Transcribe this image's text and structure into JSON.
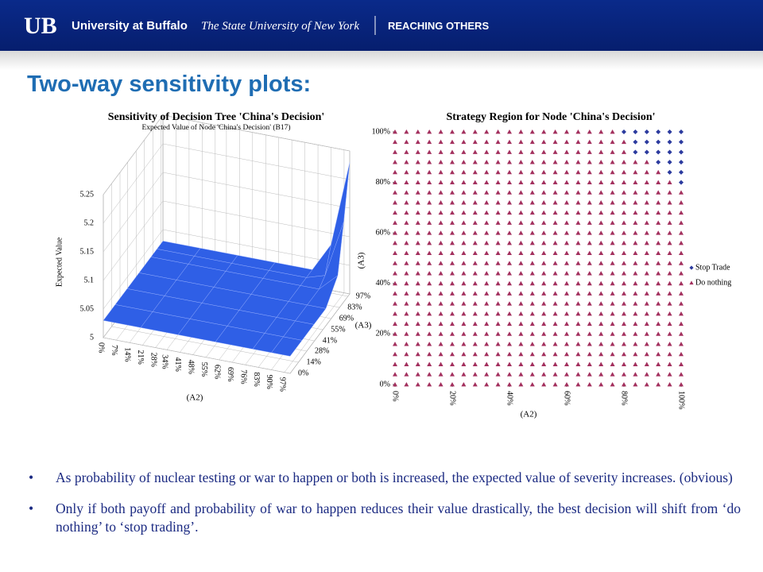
{
  "header": {
    "logo": "UB",
    "university": "University at Buffalo",
    "system": "The State University of New York",
    "tagline": "REACHING OTHERS"
  },
  "slide_title": "Two-way sensitivity plots:",
  "chart_data": [
    {
      "type": "surface",
      "title": "Sensitivity of Decision Tree 'China's Decision'",
      "subtitle": "Expected Value of Node 'China's Decision' (B17)",
      "x_label": "(A2)",
      "y_label": "(A3)",
      "z_label": "Expected Value",
      "color": "#2f5fe6",
      "x": [
        0,
        20,
        40,
        60,
        80,
        90,
        100
      ],
      "y": [
        0,
        20,
        40,
        60,
        80,
        90,
        100
      ],
      "z": [
        [
          5.03,
          5.03,
          5.03,
          5.03,
          5.03,
          5.03,
          5.03
        ],
        [
          5.03,
          5.03,
          5.03,
          5.03,
          5.03,
          5.03,
          5.03
        ],
        [
          5.03,
          5.03,
          5.03,
          5.03,
          5.03,
          5.03,
          5.03
        ],
        [
          5.03,
          5.03,
          5.03,
          5.03,
          5.03,
          5.03,
          5.03
        ],
        [
          5.03,
          5.03,
          5.03,
          5.03,
          5.03,
          5.03,
          5.06
        ],
        [
          5.03,
          5.03,
          5.03,
          5.03,
          5.03,
          5.04,
          5.14
        ],
        [
          5.03,
          5.03,
          5.03,
          5.03,
          5.03,
          5.08,
          5.23
        ]
      ],
      "xlim": [
        0,
        100
      ],
      "ylim": [
        0,
        100
      ],
      "zlim": [
        5,
        5.25
      ],
      "xticks": [
        {
          "value": 0,
          "label": "0%"
        },
        {
          "value": 7,
          "label": "7%"
        },
        {
          "value": 14,
          "label": "14%"
        },
        {
          "value": 21,
          "label": "21%"
        },
        {
          "value": 28,
          "label": "28%"
        },
        {
          "value": 34,
          "label": "34%"
        },
        {
          "value": 41,
          "label": "41%"
        },
        {
          "value": 48,
          "label": "48%"
        },
        {
          "value": 55,
          "label": "55%"
        },
        {
          "value": 62,
          "label": "62%"
        },
        {
          "value": 69,
          "label": "69%"
        },
        {
          "value": 76,
          "label": "76%"
        },
        {
          "value": 83,
          "label": "83%"
        },
        {
          "value": 90,
          "label": "90%"
        },
        {
          "value": 97,
          "label": "97%"
        }
      ],
      "yticks": [
        {
          "value": 0,
          "label": "0%"
        },
        {
          "value": 14,
          "label": "14%"
        },
        {
          "value": 28,
          "label": "28%"
        },
        {
          "value": 41,
          "label": "41%"
        },
        {
          "value": 55,
          "label": "55%"
        },
        {
          "value": 69,
          "label": "69%"
        },
        {
          "value": 83,
          "label": "83%"
        },
        {
          "value": 97,
          "label": "97%"
        }
      ],
      "zticks": [
        5,
        5.05,
        5.1,
        5.15,
        5.2,
        5.25
      ]
    },
    {
      "type": "region",
      "title": "Strategy Region for Node 'China's Decision'",
      "x_label": "(A2)",
      "y_label": "(A3)",
      "series": [
        {
          "name": "Stop Trade",
          "color": "#2b3a9e",
          "marker": "diamond"
        },
        {
          "name": "Do nothing",
          "color": "#a3305e",
          "marker": "triangle"
        }
      ],
      "x": [
        0,
        4,
        8,
        12,
        16,
        20,
        24,
        28,
        32,
        36,
        40,
        44,
        48,
        52,
        56,
        60,
        64,
        68,
        72,
        76,
        80,
        84,
        88,
        92,
        96,
        100
      ],
      "y": [
        0,
        4,
        8,
        12,
        16,
        20,
        24,
        28,
        32,
        36,
        40,
        44,
        48,
        52,
        56,
        60,
        64,
        68,
        72,
        76,
        80,
        84,
        88,
        92,
        96,
        100
      ],
      "cells": [
        [
          1,
          1,
          1,
          1,
          1,
          1,
          1,
          1,
          1,
          1,
          1,
          1,
          1,
          1,
          1,
          1,
          1,
          1,
          1,
          1,
          1,
          1,
          1,
          1,
          1,
          1
        ],
        [
          1,
          1,
          1,
          1,
          1,
          1,
          1,
          1,
          1,
          1,
          1,
          1,
          1,
          1,
          1,
          1,
          1,
          1,
          1,
          1,
          1,
          1,
          1,
          1,
          1,
          1
        ],
        [
          1,
          1,
          1,
          1,
          1,
          1,
          1,
          1,
          1,
          1,
          1,
          1,
          1,
          1,
          1,
          1,
          1,
          1,
          1,
          1,
          1,
          1,
          1,
          1,
          1,
          1
        ],
        [
          1,
          1,
          1,
          1,
          1,
          1,
          1,
          1,
          1,
          1,
          1,
          1,
          1,
          1,
          1,
          1,
          1,
          1,
          1,
          1,
          1,
          1,
          1,
          1,
          1,
          1
        ],
        [
          1,
          1,
          1,
          1,
          1,
          1,
          1,
          1,
          1,
          1,
          1,
          1,
          1,
          1,
          1,
          1,
          1,
          1,
          1,
          1,
          1,
          1,
          1,
          1,
          1,
          1
        ],
        [
          1,
          1,
          1,
          1,
          1,
          1,
          1,
          1,
          1,
          1,
          1,
          1,
          1,
          1,
          1,
          1,
          1,
          1,
          1,
          1,
          1,
          1,
          1,
          1,
          1,
          1
        ],
        [
          1,
          1,
          1,
          1,
          1,
          1,
          1,
          1,
          1,
          1,
          1,
          1,
          1,
          1,
          1,
          1,
          1,
          1,
          1,
          1,
          1,
          1,
          1,
          1,
          1,
          1
        ],
        [
          1,
          1,
          1,
          1,
          1,
          1,
          1,
          1,
          1,
          1,
          1,
          1,
          1,
          1,
          1,
          1,
          1,
          1,
          1,
          1,
          1,
          1,
          1,
          1,
          1,
          1
        ],
        [
          1,
          1,
          1,
          1,
          1,
          1,
          1,
          1,
          1,
          1,
          1,
          1,
          1,
          1,
          1,
          1,
          1,
          1,
          1,
          1,
          1,
          1,
          1,
          1,
          1,
          1
        ],
        [
          1,
          1,
          1,
          1,
          1,
          1,
          1,
          1,
          1,
          1,
          1,
          1,
          1,
          1,
          1,
          1,
          1,
          1,
          1,
          1,
          1,
          1,
          1,
          1,
          1,
          1
        ],
        [
          1,
          1,
          1,
          1,
          1,
          1,
          1,
          1,
          1,
          1,
          1,
          1,
          1,
          1,
          1,
          1,
          1,
          1,
          1,
          1,
          1,
          1,
          1,
          1,
          1,
          1
        ],
        [
          1,
          1,
          1,
          1,
          1,
          1,
          1,
          1,
          1,
          1,
          1,
          1,
          1,
          1,
          1,
          1,
          1,
          1,
          1,
          1,
          1,
          1,
          1,
          1,
          1,
          1
        ],
        [
          1,
          1,
          1,
          1,
          1,
          1,
          1,
          1,
          1,
          1,
          1,
          1,
          1,
          1,
          1,
          1,
          1,
          1,
          1,
          1,
          1,
          1,
          1,
          1,
          1,
          1
        ],
        [
          1,
          1,
          1,
          1,
          1,
          1,
          1,
          1,
          1,
          1,
          1,
          1,
          1,
          1,
          1,
          1,
          1,
          1,
          1,
          1,
          1,
          1,
          1,
          1,
          1,
          1
        ],
        [
          1,
          1,
          1,
          1,
          1,
          1,
          1,
          1,
          1,
          1,
          1,
          1,
          1,
          1,
          1,
          1,
          1,
          1,
          1,
          1,
          1,
          1,
          1,
          1,
          1,
          1
        ],
        [
          1,
          1,
          1,
          1,
          1,
          1,
          1,
          1,
          1,
          1,
          1,
          1,
          1,
          1,
          1,
          1,
          1,
          1,
          1,
          1,
          1,
          1,
          1,
          1,
          1,
          1
        ],
        [
          1,
          1,
          1,
          1,
          1,
          1,
          1,
          1,
          1,
          1,
          1,
          1,
          1,
          1,
          1,
          1,
          1,
          1,
          1,
          1,
          1,
          1,
          1,
          1,
          1,
          1
        ],
        [
          1,
          1,
          1,
          1,
          1,
          1,
          1,
          1,
          1,
          1,
          1,
          1,
          1,
          1,
          1,
          1,
          1,
          1,
          1,
          1,
          1,
          1,
          1,
          1,
          1,
          1
        ],
        [
          1,
          1,
          1,
          1,
          1,
          1,
          1,
          1,
          1,
          1,
          1,
          1,
          1,
          1,
          1,
          1,
          1,
          1,
          1,
          1,
          1,
          1,
          1,
          1,
          1,
          1
        ],
        [
          1,
          1,
          1,
          1,
          1,
          1,
          1,
          1,
          1,
          1,
          1,
          1,
          1,
          1,
          1,
          1,
          1,
          1,
          1,
          1,
          1,
          1,
          1,
          1,
          1,
          1
        ],
        [
          1,
          1,
          1,
          1,
          1,
          1,
          1,
          1,
          1,
          1,
          1,
          1,
          1,
          1,
          1,
          1,
          1,
          1,
          1,
          1,
          1,
          1,
          1,
          1,
          1,
          0
        ],
        [
          1,
          1,
          1,
          1,
          1,
          1,
          1,
          1,
          1,
          1,
          1,
          1,
          1,
          1,
          1,
          1,
          1,
          1,
          1,
          1,
          1,
          1,
          1,
          1,
          0,
          0
        ],
        [
          1,
          1,
          1,
          1,
          1,
          1,
          1,
          1,
          1,
          1,
          1,
          1,
          1,
          1,
          1,
          1,
          1,
          1,
          1,
          1,
          1,
          1,
          1,
          0,
          0,
          0
        ],
        [
          1,
          1,
          1,
          1,
          1,
          1,
          1,
          1,
          1,
          1,
          1,
          1,
          1,
          1,
          1,
          1,
          1,
          1,
          1,
          1,
          1,
          0,
          0,
          0,
          0,
          0
        ],
        [
          1,
          1,
          1,
          1,
          1,
          1,
          1,
          1,
          1,
          1,
          1,
          1,
          1,
          1,
          1,
          1,
          1,
          1,
          1,
          1,
          1,
          0,
          0,
          0,
          0,
          0
        ],
        [
          1,
          1,
          1,
          1,
          1,
          1,
          1,
          1,
          1,
          1,
          1,
          1,
          1,
          1,
          1,
          1,
          1,
          1,
          1,
          1,
          0,
          0,
          0,
          0,
          0,
          0
        ]
      ],
      "xlim": [
        0,
        100
      ],
      "ylim": [
        0,
        100
      ],
      "xticks": [
        {
          "value": 0,
          "label": "0%"
        },
        {
          "value": 20,
          "label": "20%"
        },
        {
          "value": 40,
          "label": "40%"
        },
        {
          "value": 60,
          "label": "60%"
        },
        {
          "value": 80,
          "label": "80%"
        },
        {
          "value": 100,
          "label": "100%"
        }
      ],
      "yticks": [
        {
          "value": 0,
          "label": "0%"
        },
        {
          "value": 20,
          "label": "20%"
        },
        {
          "value": 40,
          "label": "40%"
        },
        {
          "value": 60,
          "label": "60%"
        },
        {
          "value": 80,
          "label": "80%"
        },
        {
          "value": 100,
          "label": "100%"
        }
      ],
      "legend": "right"
    }
  ],
  "bullets": [
    "As probability of nuclear testing or war to happen or both is increased, the expected value of severity increases. (obvious)",
    "Only if both payoff and probability of war to happen reduces their value drastically, the best decision will shift from ‘do nothing’ to ‘stop trading’."
  ]
}
